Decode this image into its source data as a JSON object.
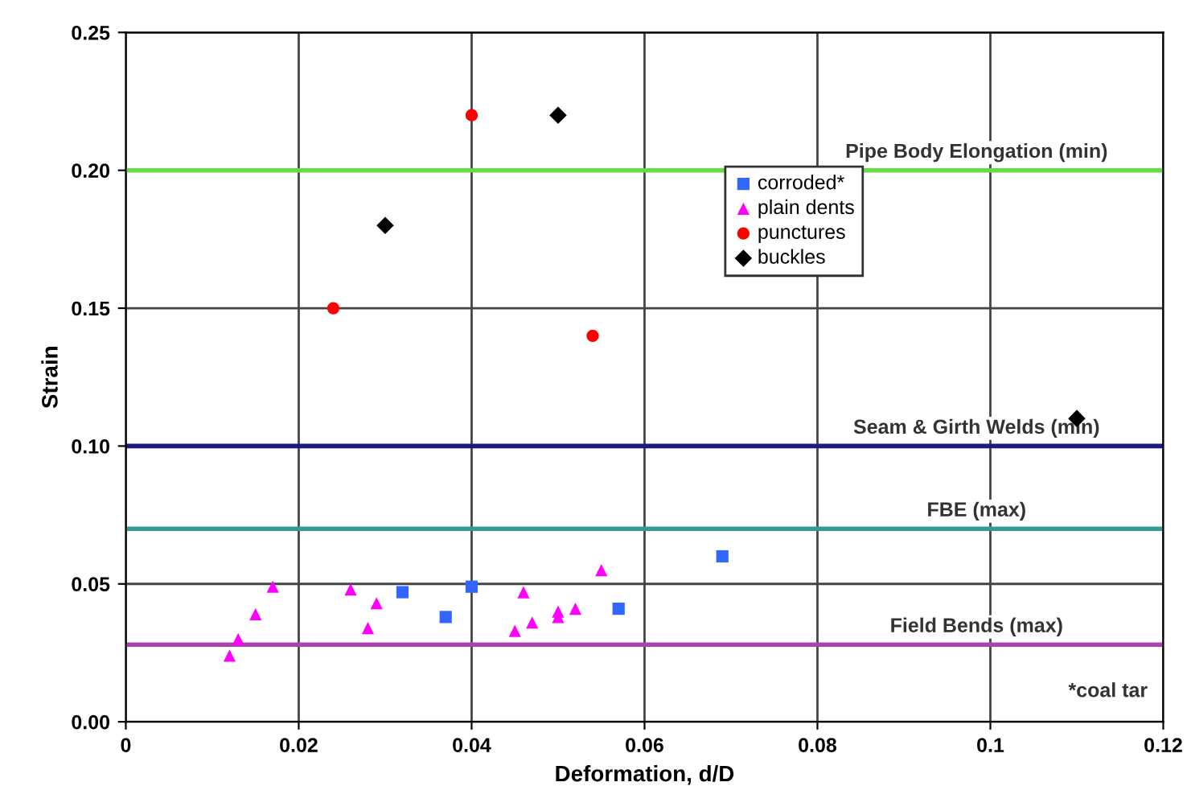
{
  "chart_data": {
    "type": "scatter",
    "xlabel": "Deformation, d/D",
    "ylabel": "Strain",
    "xlim": [
      0,
      0.12
    ],
    "xticks": [
      {
        "value": 0,
        "label": "0"
      },
      0.02,
      0.04,
      0.06,
      0.08,
      0.1,
      0.12
    ],
    "ylim": [
      0,
      0.25
    ],
    "yticks": [
      {
        "value": 0,
        "label": "0.00"
      },
      0.05,
      {
        "value": 0.1,
        "label": "0.10"
      },
      0.15,
      {
        "value": 0.2,
        "label": "0.20"
      },
      0.25
    ],
    "grid": true,
    "legend": "top right",
    "series": [
      {
        "name": "corroded*",
        "color": "#3366ff",
        "marker": "square",
        "x": [
          0.032,
          0.037,
          0.04,
          0.057,
          0.069
        ],
        "values": [
          0.047,
          0.038,
          0.049,
          0.041,
          0.06
        ]
      },
      {
        "name": "plain dents",
        "color": "#ff00ff",
        "marker": "triangle",
        "x": [
          0.012,
          0.013,
          0.015,
          0.017,
          0.026,
          0.028,
          0.029,
          0.045,
          0.046,
          0.047,
          0.05,
          0.05,
          0.052,
          0.055
        ],
        "values": [
          0.024,
          0.03,
          0.039,
          0.049,
          0.048,
          0.034,
          0.043,
          0.033,
          0.047,
          0.036,
          0.04,
          0.038,
          0.041,
          0.055
        ]
      },
      {
        "name": "punctures",
        "color": "#ff0000",
        "marker": "circle",
        "x": [
          0.024,
          0.04,
          0.054
        ],
        "values": [
          0.15,
          0.22,
          0.14
        ]
      },
      {
        "name": "buckles",
        "color": "#000000",
        "marker": "diamond",
        "x": [
          0.03,
          0.05,
          0.11
        ],
        "values": [
          0.18,
          0.22,
          0.11
        ]
      }
    ],
    "ref_lines": [
      {
        "axis": "y",
        "value": 0.2,
        "label": "Pipe Body Elongation (min)",
        "color": "#66dd44"
      },
      {
        "axis": "y",
        "value": 0.1,
        "label": "Seam & Girth Welds (min)",
        "color": "#1a1a80"
      },
      {
        "axis": "y",
        "value": 0.07,
        "label": "FBE (max)",
        "color": "#339999"
      },
      {
        "axis": "y",
        "value": 0.028,
        "label": "Field Bends (max)",
        "color": "#aa44aa"
      }
    ],
    "annotations": [
      "*coal tar"
    ]
  }
}
